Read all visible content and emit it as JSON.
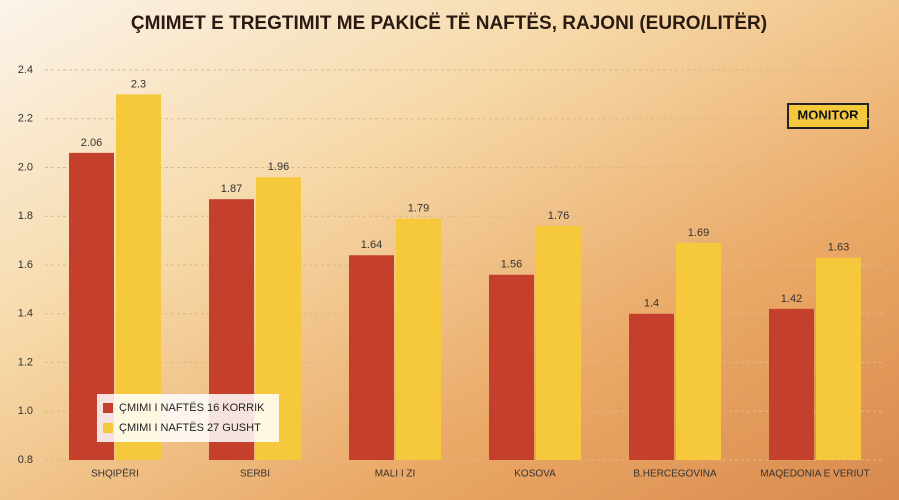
{
  "chart_data": {
    "type": "bar",
    "title": "ÇMIMET E TREGTIMIT ME PAKICË TË NAFTËS, RAJONI (EURO/LITËR)",
    "brand": "MONITOR",
    "categories": [
      "SHQIPËRI",
      "SERBI",
      "MALI I ZI",
      "KOSOVA",
      "B.HERCEGOVINA",
      "MAQEDONIA E VERIUT"
    ],
    "series": [
      {
        "name": "ÇMIMI I NAFTËS 16 KORRIK",
        "color": "#c4402c",
        "values": [
          2.06,
          1.87,
          1.64,
          1.56,
          1.4,
          1.42
        ]
      },
      {
        "name": "ÇMIMI I NAFTËS 27 GUSHT",
        "color": "#f6c93c",
        "values": [
          2.3,
          1.96,
          1.79,
          1.76,
          1.69,
          1.63
        ]
      }
    ],
    "ylim": [
      0.8,
      2.4
    ],
    "yticks": [
      0.8,
      {
        "value": 1.0,
        "label": "1.0"
      },
      1.2,
      1.4,
      1.6,
      1.8,
      {
        "value": 2.0,
        "label": "2.0"
      },
      2.2,
      2.4
    ],
    "grid": true,
    "legend": "lower left"
  }
}
